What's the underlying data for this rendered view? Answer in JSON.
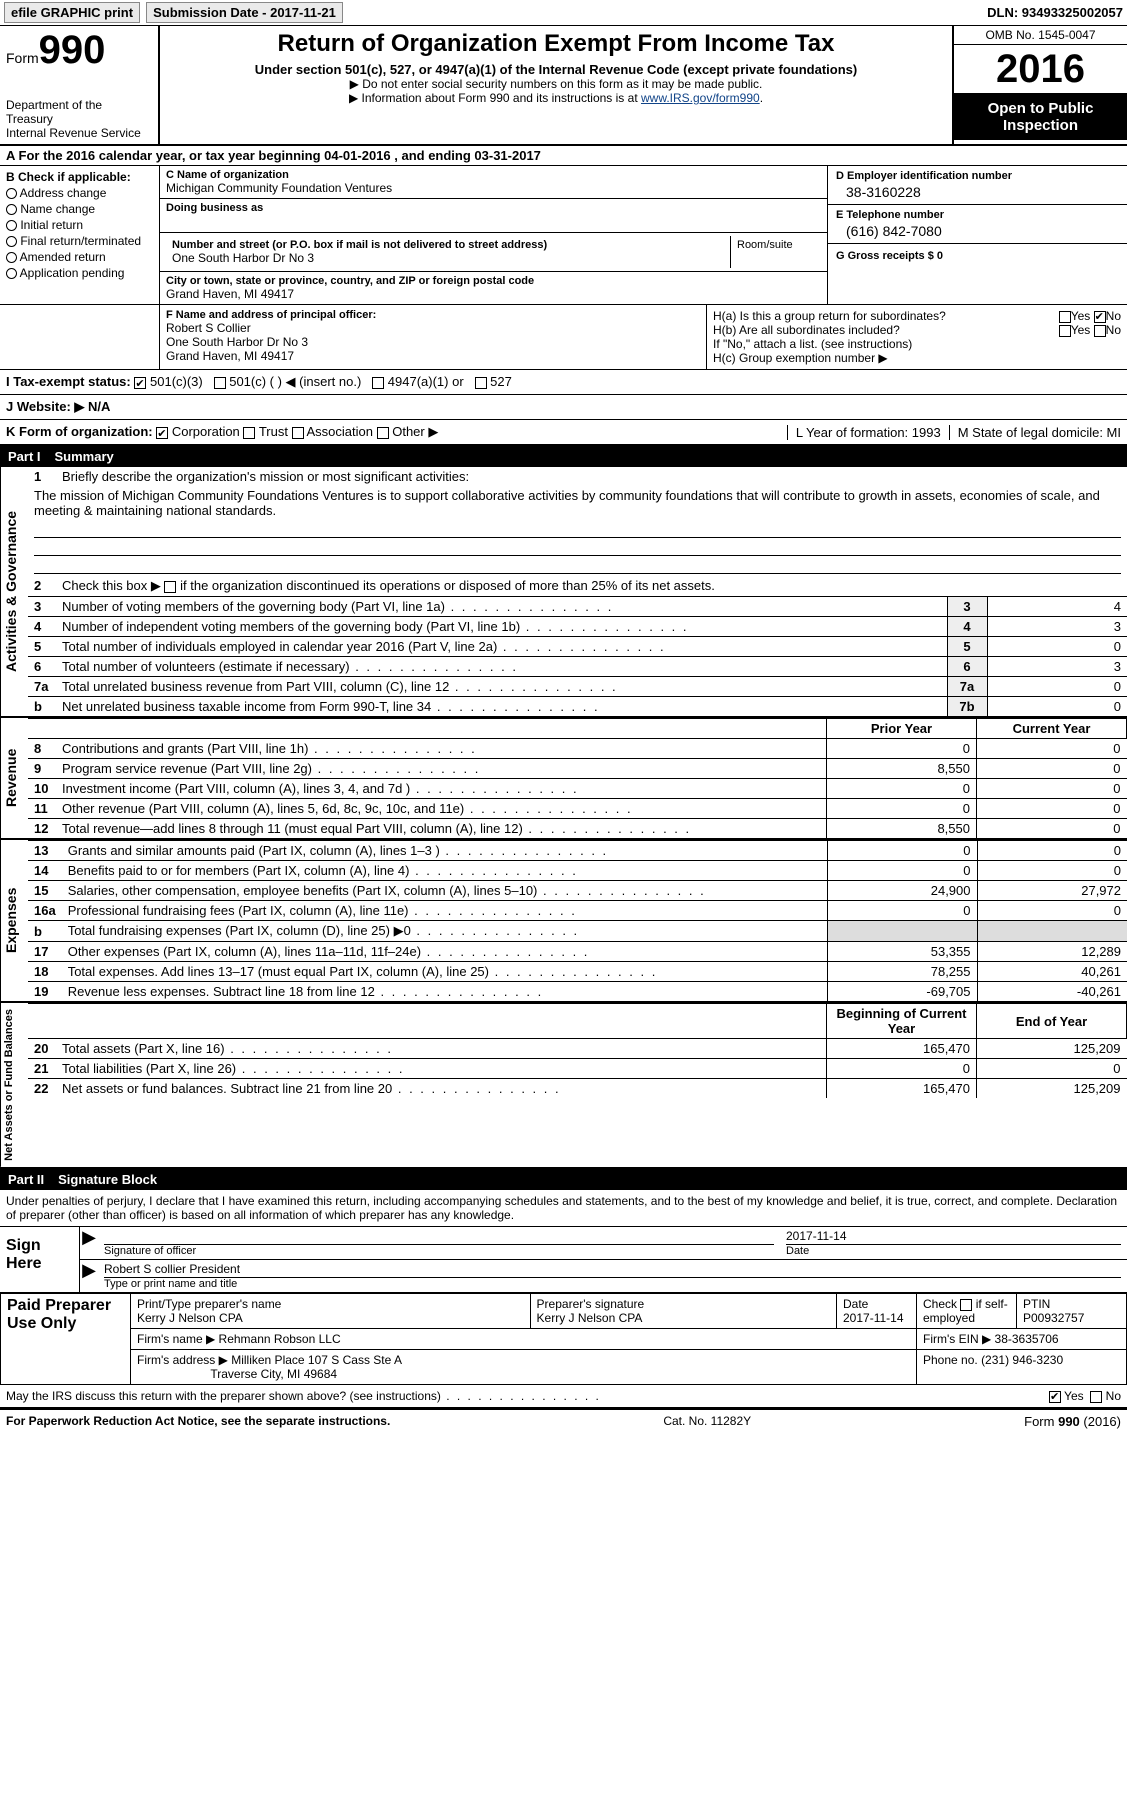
{
  "topbar": {
    "efile": "efile GRAPHIC print",
    "submission_label": "Submission Date - 2017-11-21",
    "dln": "DLN: 93493325002057"
  },
  "header": {
    "form_word": "Form",
    "form_num": "990",
    "dept1": "Department of the Treasury",
    "dept2": "Internal Revenue Service",
    "title": "Return of Organization Exempt From Income Tax",
    "subtitle": "Under section 501(c), 527, or 4947(a)(1) of the Internal Revenue Code (except private foundations)",
    "note1": "▶ Do not enter social security numbers on this form as it may be made public.",
    "note2_pre": "▶ Information about Form 990 and its instructions is at ",
    "note2_link": "www.IRS.gov/form990",
    "omb": "OMB No. 1545-0047",
    "year": "2016",
    "otp": "Open to Public Inspection"
  },
  "rowA": "A  For the 2016 calendar year, or tax year beginning 04-01-2016   , and ending 03-31-2017",
  "colB": {
    "label": "B Check if applicable:",
    "items": [
      "Address change",
      "Name change",
      "Initial return",
      "Final return/terminated",
      "Amended return",
      "Application pending"
    ]
  },
  "colC": {
    "name_label": "C Name of organization",
    "name": "Michigan Community Foundation Ventures",
    "dba_label": "Doing business as",
    "addr_label": "Number and street (or P.O. box if mail is not delivered to street address)",
    "room_label": "Room/suite",
    "addr": "One South Harbor Dr No 3",
    "city_label": "City or town, state or province, country, and ZIP or foreign postal code",
    "city": "Grand Haven, MI  49417"
  },
  "colD": {
    "ein_label": "D Employer identification number",
    "ein": "38-3160228",
    "tel_label": "E Telephone number",
    "tel": "(616) 842-7080",
    "gross_label": "G Gross receipts $ 0"
  },
  "rowF": {
    "label": "F Name and address of principal officer:",
    "l1": "Robert S Collier",
    "l2": "One South Harbor Dr No 3",
    "l3": "Grand Haven, MI  49417"
  },
  "rowH": {
    "ha": "H(a)  Is this a group return for subordinates?",
    "hb": "H(b)  Are all subordinates included?",
    "hb2": "If \"No,\" attach a list. (see instructions)",
    "hc": "H(c)  Group exemption number ▶"
  },
  "rowI": {
    "label": "I  Tax-exempt status:",
    "o1": "501(c)(3)",
    "o2": "501(c) (   ) ◀ (insert no.)",
    "o3": "4947(a)(1) or",
    "o4": "527"
  },
  "rowJ": "J  Website: ▶  N/A",
  "rowK": {
    "label": "K Form of organization:",
    "o1": "Corporation",
    "o2": "Trust",
    "o3": "Association",
    "o4": "Other ▶",
    "l": "L Year of formation: 1993",
    "m": "M State of legal domicile: MI"
  },
  "part1": {
    "label": "Part I",
    "title": "Summary"
  },
  "ag": {
    "tab": "Activities & Governance",
    "l1": "Briefly describe the organization's mission or most significant activities:",
    "mission": "The mission of Michigan Community Foundations Ventures is to support collaborative activities by community foundations that will contribute to growth in assets, economies of scale, and meeting & maintaining national standards.",
    "l2": "Check this box ▶  if the organization discontinued its operations or disposed of more than 25% of its net assets.",
    "rows": [
      {
        "n": "3",
        "t": "Number of voting members of the governing body (Part VI, line 1a)",
        "b": "3",
        "v": "4"
      },
      {
        "n": "4",
        "t": "Number of independent voting members of the governing body (Part VI, line 1b)",
        "b": "4",
        "v": "3"
      },
      {
        "n": "5",
        "t": "Total number of individuals employed in calendar year 2016 (Part V, line 2a)",
        "b": "5",
        "v": "0"
      },
      {
        "n": "6",
        "t": "Total number of volunteers (estimate if necessary)",
        "b": "6",
        "v": "3"
      },
      {
        "n": "7a",
        "t": "Total unrelated business revenue from Part VIII, column (C), line 12",
        "b": "7a",
        "v": "0"
      },
      {
        "n": "b",
        "t": "Net unrelated business taxable income from Form 990-T, line 34",
        "b": "7b",
        "v": "0"
      }
    ]
  },
  "rev": {
    "tab": "Revenue",
    "h1": "Prior Year",
    "h2": "Current Year",
    "rows": [
      {
        "n": "8",
        "t": "Contributions and grants (Part VIII, line 1h)",
        "p": "0",
        "c": "0"
      },
      {
        "n": "9",
        "t": "Program service revenue (Part VIII, line 2g)",
        "p": "8,550",
        "c": "0"
      },
      {
        "n": "10",
        "t": "Investment income (Part VIII, column (A), lines 3, 4, and 7d )",
        "p": "0",
        "c": "0"
      },
      {
        "n": "11",
        "t": "Other revenue (Part VIII, column (A), lines 5, 6d, 8c, 9c, 10c, and 11e)",
        "p": "0",
        "c": "0"
      },
      {
        "n": "12",
        "t": "Total revenue—add lines 8 through 11 (must equal Part VIII, column (A), line 12)",
        "p": "8,550",
        "c": "0"
      }
    ]
  },
  "exp": {
    "tab": "Expenses",
    "rows": [
      {
        "n": "13",
        "t": "Grants and similar amounts paid (Part IX, column (A), lines 1–3 )",
        "p": "0",
        "c": "0"
      },
      {
        "n": "14",
        "t": "Benefits paid to or for members (Part IX, column (A), line 4)",
        "p": "0",
        "c": "0"
      },
      {
        "n": "15",
        "t": "Salaries, other compensation, employee benefits (Part IX, column (A), lines 5–10)",
        "p": "24,900",
        "c": "27,972"
      },
      {
        "n": "16a",
        "t": "Professional fundraising fees (Part IX, column (A), line 11e)",
        "p": "0",
        "c": "0"
      },
      {
        "n": "b",
        "t": "Total fundraising expenses (Part IX, column (D), line 25) ▶0",
        "p": "",
        "c": "",
        "shade": true
      },
      {
        "n": "17",
        "t": "Other expenses (Part IX, column (A), lines 11a–11d, 11f–24e)",
        "p": "53,355",
        "c": "12,289"
      },
      {
        "n": "18",
        "t": "Total expenses. Add lines 13–17 (must equal Part IX, column (A), line 25)",
        "p": "78,255",
        "c": "40,261"
      },
      {
        "n": "19",
        "t": "Revenue less expenses. Subtract line 18 from line 12",
        "p": "-69,705",
        "c": "-40,261"
      }
    ]
  },
  "na": {
    "tab": "Net Assets or Fund Balances",
    "h1": "Beginning of Current Year",
    "h2": "End of Year",
    "rows": [
      {
        "n": "20",
        "t": "Total assets (Part X, line 16)",
        "p": "165,470",
        "c": "125,209"
      },
      {
        "n": "21",
        "t": "Total liabilities (Part X, line 26)",
        "p": "0",
        "c": "0"
      },
      {
        "n": "22",
        "t": "Net assets or fund balances. Subtract line 21 from line 20",
        "p": "165,470",
        "c": "125,209"
      }
    ]
  },
  "part2": {
    "label": "Part II",
    "title": "Signature Block"
  },
  "sig": {
    "text": "Under penalties of perjury, I declare that I have examined this return, including accompanying schedules and statements, and to the best of my knowledge and belief, it is true, correct, and complete. Declaration of preparer (other than officer) is based on all information of which preparer has any knowledge.",
    "sign_here": "Sign Here",
    "sig_officer": "Signature of officer",
    "date": "2017-11-14",
    "date_lbl": "Date",
    "name": "Robert S collier President",
    "name_lbl": "Type or print name and title",
    "paid": "Paid Preparer Use Only",
    "prep_name_lbl": "Print/Type preparer's name",
    "prep_name": "Kerry J Nelson CPA",
    "prep_sig_lbl": "Preparer's signature",
    "prep_sig": "Kerry J Nelson CPA",
    "prep_date_lbl": "Date",
    "prep_date": "2017-11-14",
    "self_lbl": "Check ▢ if self-employed",
    "ptin_lbl": "PTIN",
    "ptin": "P00932757",
    "firm_name_lbl": "Firm's name    ▶",
    "firm_name": "Rehmann Robson LLC",
    "firm_ein_lbl": "Firm's EIN ▶",
    "firm_ein": "38-3635706",
    "firm_addr_lbl": "Firm's address ▶",
    "firm_addr1": "Milliken Place 107 S Cass Ste A",
    "firm_addr2": "Traverse City, MI  49684",
    "phone_lbl": "Phone no.",
    "phone": "(231) 946-3230",
    "discuss": "May the IRS discuss this return with the preparer shown above? (see instructions)"
  },
  "footer": {
    "l": "For Paperwork Reduction Act Notice, see the separate instructions.",
    "c": "Cat. No. 11282Y",
    "r": "Form 990 (2016)"
  },
  "colors": {
    "link": "#114488",
    "shade": "#dddddd",
    "boxbg": "#eeeeee"
  }
}
